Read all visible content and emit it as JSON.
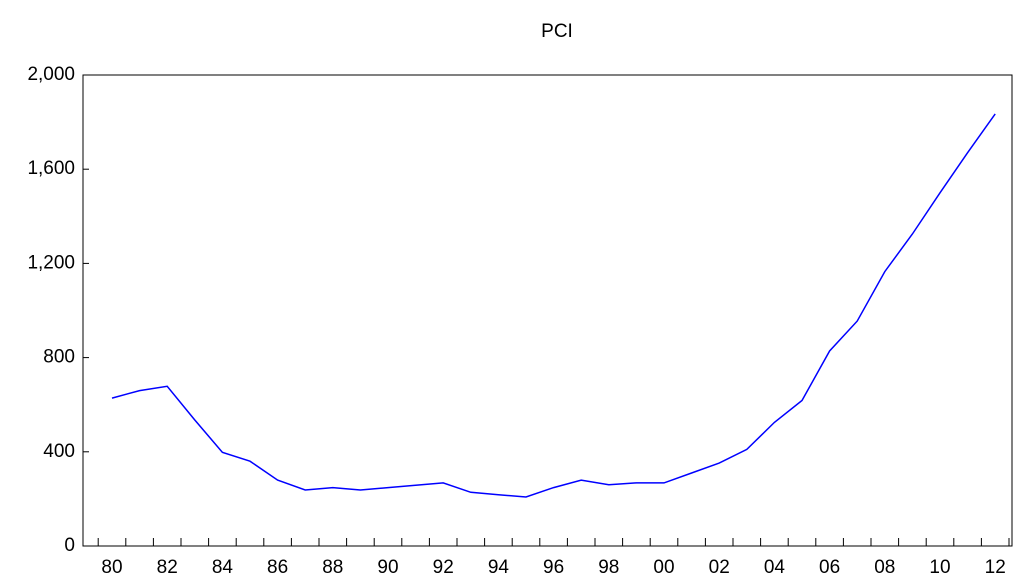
{
  "chart_data": {
    "type": "line",
    "title": "PCI",
    "categories": [
      "80",
      null,
      "82",
      null,
      "84",
      null,
      "86",
      null,
      "88",
      null,
      "90",
      null,
      "92",
      null,
      "94",
      null,
      "96",
      null,
      "98",
      null,
      "00",
      null,
      "02",
      null,
      "04",
      null,
      "06",
      null,
      "08",
      null,
      "10",
      null,
      "12"
    ],
    "values": [
      628,
      660,
      678,
      535,
      398,
      360,
      280,
      238,
      248,
      238,
      248,
      258,
      268,
      228,
      218,
      208,
      248,
      280,
      260,
      268,
      268,
      310,
      352,
      410,
      525,
      618,
      828,
      955,
      1165,
      1325,
      1500,
      1670,
      1835
    ],
    "color": "#0000ff",
    "ylim": [
      0,
      2000
    ],
    "yticks": [
      0,
      400,
      800,
      {
        "value": 1200,
        "label": "1,200"
      },
      {
        "value": 1600,
        "label": "1,600"
      },
      {
        "value": 2000,
        "label": "2,000"
      }
    ]
  }
}
